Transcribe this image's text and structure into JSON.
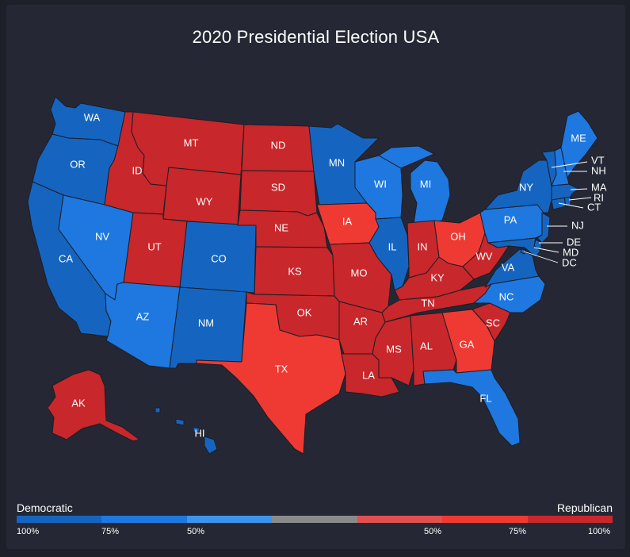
{
  "title": "2020 Presidential Election USA",
  "colors": {
    "dem_strong": "#1565c0",
    "dem_mid": "#1e78e0",
    "dem_lean": "#3d94ec",
    "tossup": "#8a8a8a",
    "rep_lean": "#e05050",
    "rep_mid": "#ef3a33",
    "rep_strong": "#c8272b"
  },
  "states": [
    {
      "abbr": "WA",
      "color": "dem_strong"
    },
    {
      "abbr": "OR",
      "color": "dem_strong"
    },
    {
      "abbr": "CA",
      "color": "dem_strong"
    },
    {
      "abbr": "NV",
      "color": "dem_mid"
    },
    {
      "abbr": "ID",
      "color": "rep_strong"
    },
    {
      "abbr": "MT",
      "color": "rep_strong"
    },
    {
      "abbr": "WY",
      "color": "rep_strong"
    },
    {
      "abbr": "UT",
      "color": "rep_strong"
    },
    {
      "abbr": "AZ",
      "color": "dem_mid"
    },
    {
      "abbr": "CO",
      "color": "dem_strong"
    },
    {
      "abbr": "NM",
      "color": "dem_strong"
    },
    {
      "abbr": "ND",
      "color": "rep_strong"
    },
    {
      "abbr": "SD",
      "color": "rep_strong"
    },
    {
      "abbr": "NE",
      "color": "rep_strong"
    },
    {
      "abbr": "KS",
      "color": "rep_strong"
    },
    {
      "abbr": "OK",
      "color": "rep_strong"
    },
    {
      "abbr": "TX",
      "color": "rep_mid"
    },
    {
      "abbr": "MN",
      "color": "dem_strong"
    },
    {
      "abbr": "IA",
      "color": "rep_mid"
    },
    {
      "abbr": "MO",
      "color": "rep_strong"
    },
    {
      "abbr": "AR",
      "color": "rep_strong"
    },
    {
      "abbr": "LA",
      "color": "rep_strong"
    },
    {
      "abbr": "WI",
      "color": "dem_mid"
    },
    {
      "abbr": "IL",
      "color": "dem_strong"
    },
    {
      "abbr": "MI",
      "color": "dem_mid"
    },
    {
      "abbr": "IN",
      "color": "rep_strong"
    },
    {
      "abbr": "OH",
      "color": "rep_mid"
    },
    {
      "abbr": "KY",
      "color": "rep_strong"
    },
    {
      "abbr": "TN",
      "color": "rep_strong"
    },
    {
      "abbr": "MS",
      "color": "rep_strong"
    },
    {
      "abbr": "AL",
      "color": "rep_strong"
    },
    {
      "abbr": "GA",
      "color": "rep_mid"
    },
    {
      "abbr": "FL",
      "color": "dem_mid"
    },
    {
      "abbr": "SC",
      "color": "rep_strong"
    },
    {
      "abbr": "NC",
      "color": "dem_mid"
    },
    {
      "abbr": "VA",
      "color": "dem_strong"
    },
    {
      "abbr": "WV",
      "color": "rep_strong"
    },
    {
      "abbr": "PA",
      "color": "dem_mid"
    },
    {
      "abbr": "NY",
      "color": "dem_strong"
    },
    {
      "abbr": "NJ",
      "color": "dem_strong"
    },
    {
      "abbr": "DE",
      "color": "dem_strong"
    },
    {
      "abbr": "MD",
      "color": "dem_strong"
    },
    {
      "abbr": "DC",
      "color": "dem_strong"
    },
    {
      "abbr": "CT",
      "color": "dem_strong"
    },
    {
      "abbr": "RI",
      "color": "dem_strong"
    },
    {
      "abbr": "MA",
      "color": "dem_strong"
    },
    {
      "abbr": "VT",
      "color": "dem_strong"
    },
    {
      "abbr": "NH",
      "color": "dem_mid"
    },
    {
      "abbr": "ME",
      "color": "dem_mid"
    },
    {
      "abbr": "AK",
      "color": "rep_strong"
    },
    {
      "abbr": "HI",
      "color": "dem_strong"
    }
  ],
  "legend": {
    "left_label": "Democratic",
    "right_label": "Republican",
    "segments": [
      "dem_strong",
      "dem_mid",
      "dem_lean",
      "tossup",
      "rep_lean",
      "rep_mid",
      "rep_strong"
    ],
    "ticks": [
      "100%",
      "75%",
      "50%",
      "50%",
      "75%",
      "100%"
    ]
  }
}
